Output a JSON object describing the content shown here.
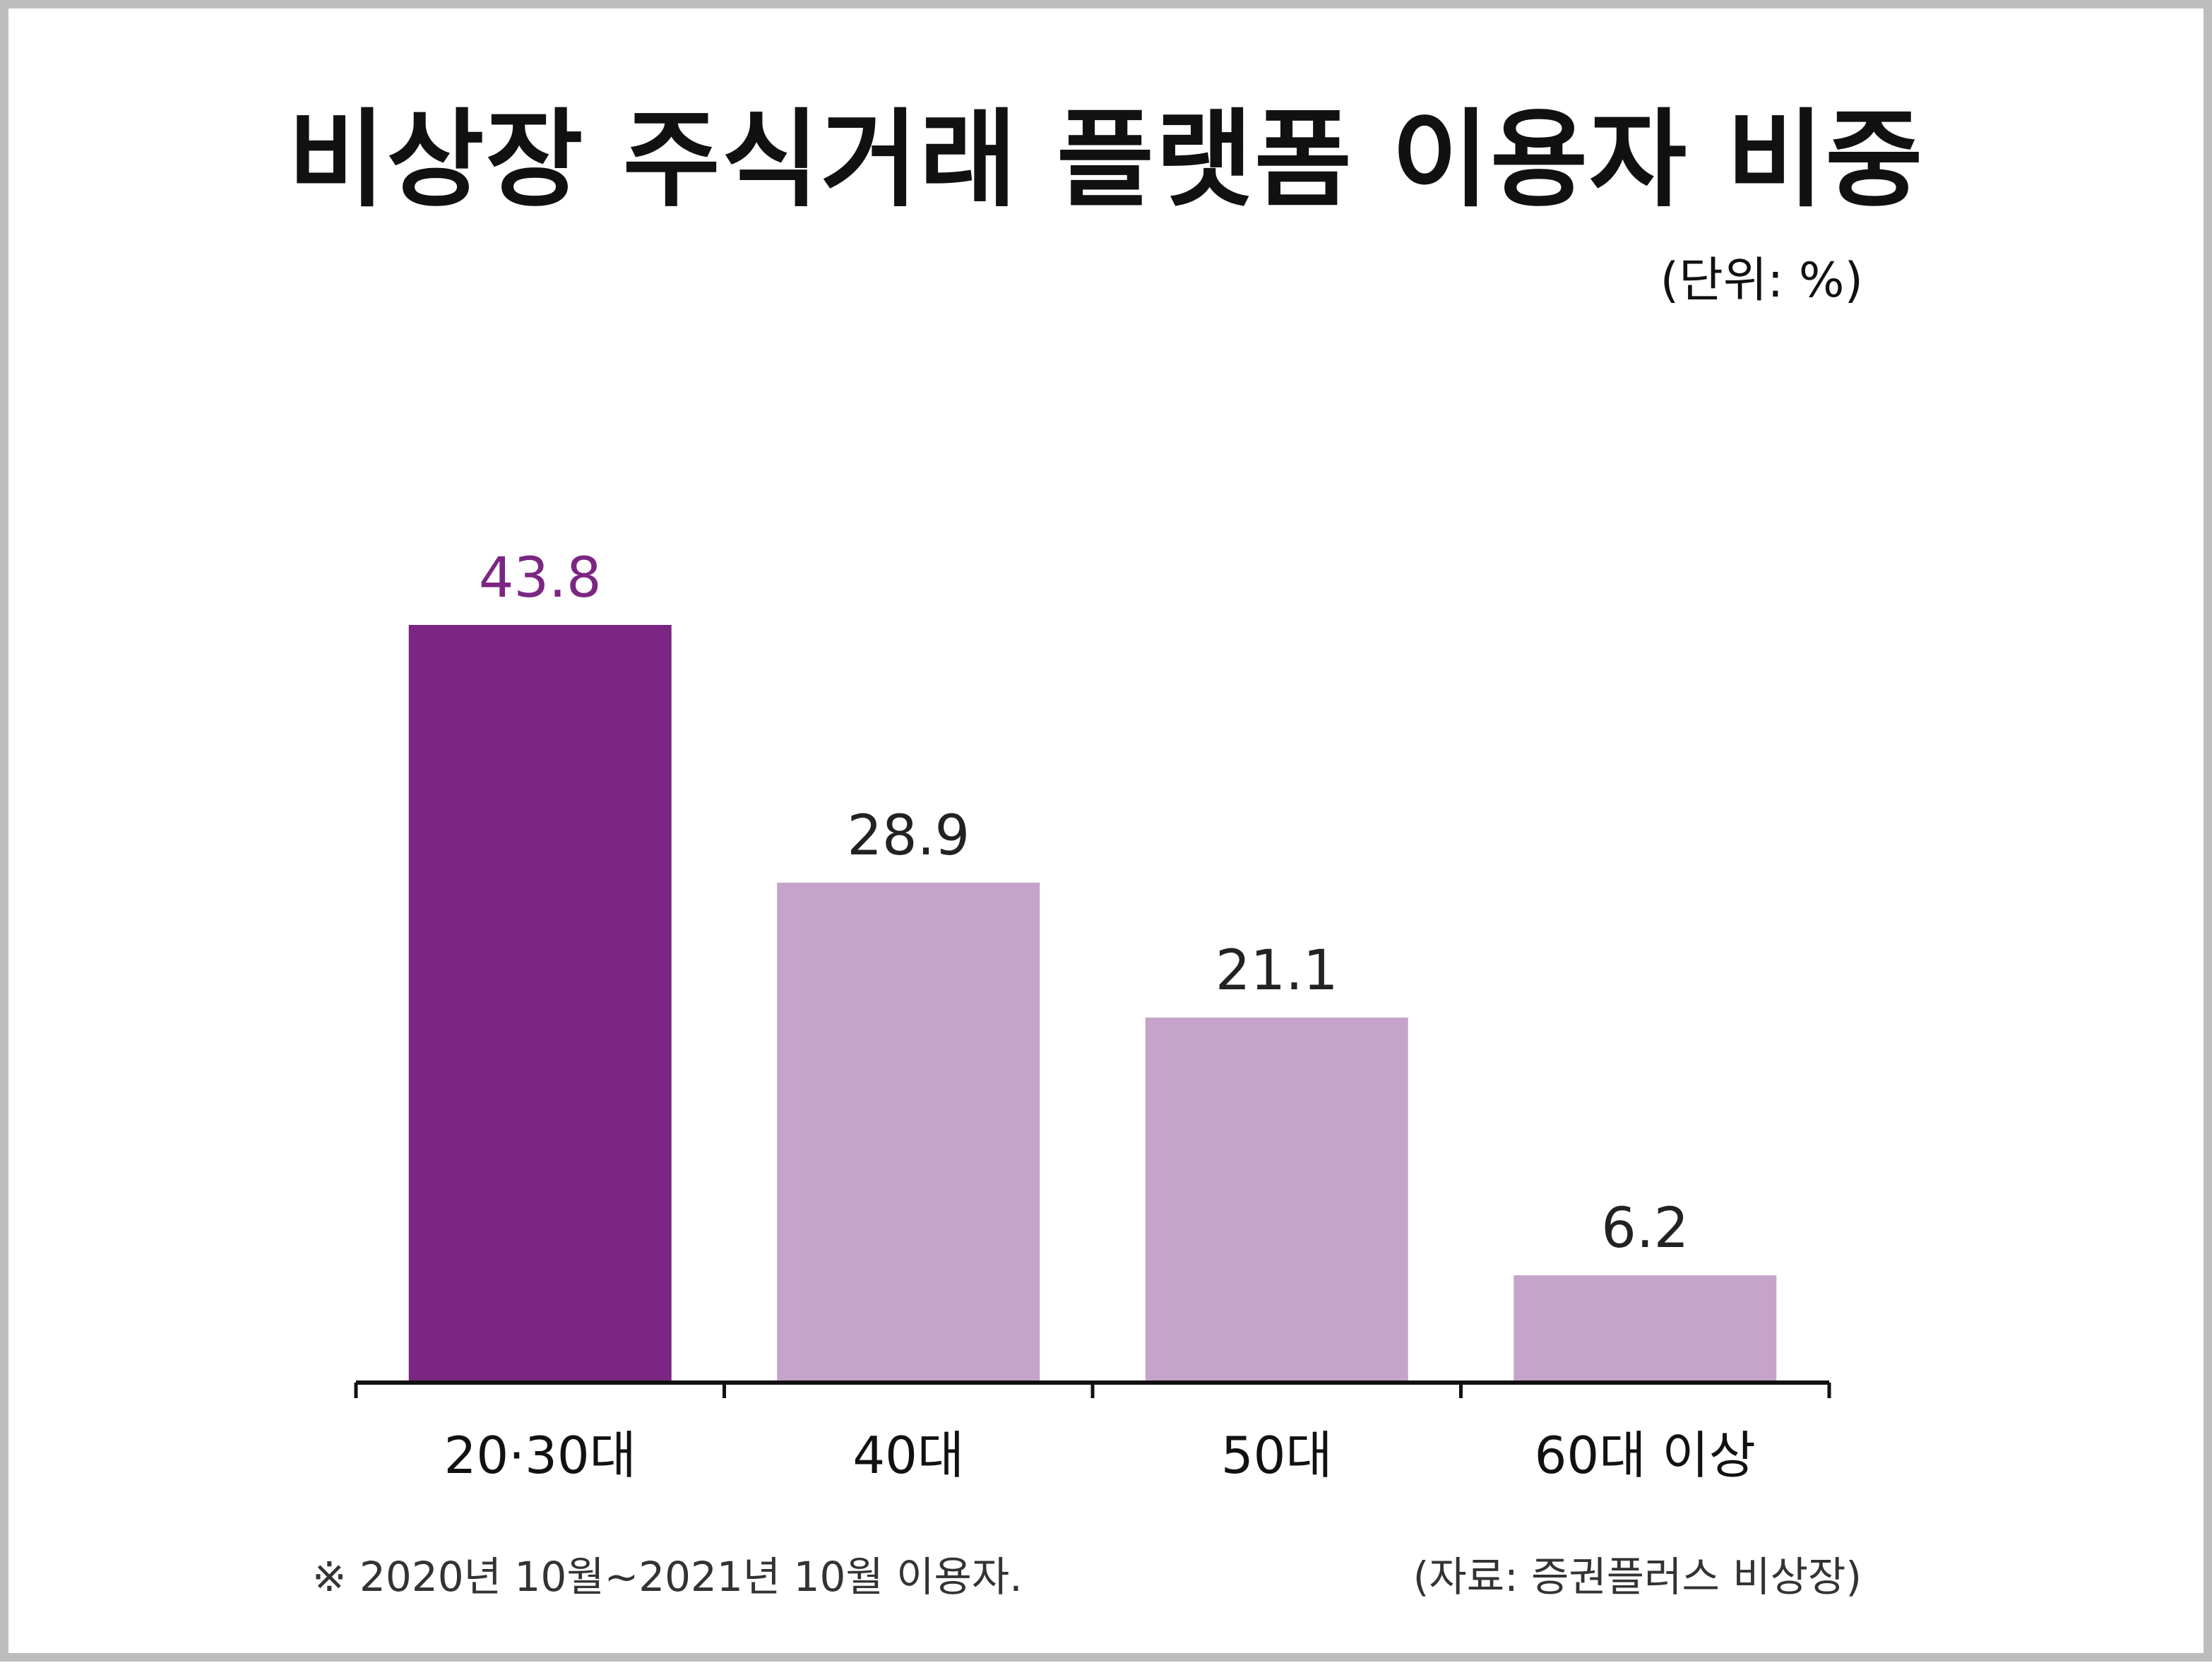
{
  "title": "비상장 주식거래 플랫폼 이용자 비중",
  "unit_label": "(단위: %)",
  "footnote": "※ 2020년 10월~2021년 10월 이용자.",
  "source": "(자료: 증권플러스 비상장)",
  "colors": {
    "highlight": "#7b2682",
    "normal": "#c6a3cb",
    "axis": "#111111",
    "label_normal": "#222222",
    "label_highlight": "#7b2682"
  },
  "chart_data": {
    "type": "bar",
    "categories": [
      "20·30대",
      "40대",
      "50대",
      "60대 이상"
    ],
    "values": [
      43.8,
      28.9,
      21.1,
      6.2
    ],
    "value_labels": [
      "43.8",
      "28.9",
      "21.1",
      "6.2"
    ],
    "highlight_index": 0,
    "title": "비상장 주식거래 플랫폼 이용자 비중",
    "xlabel": "",
    "ylabel": "",
    "unit": "%",
    "ylim": [
      0,
      43.8
    ],
    "grid": false,
    "legend": "none"
  }
}
